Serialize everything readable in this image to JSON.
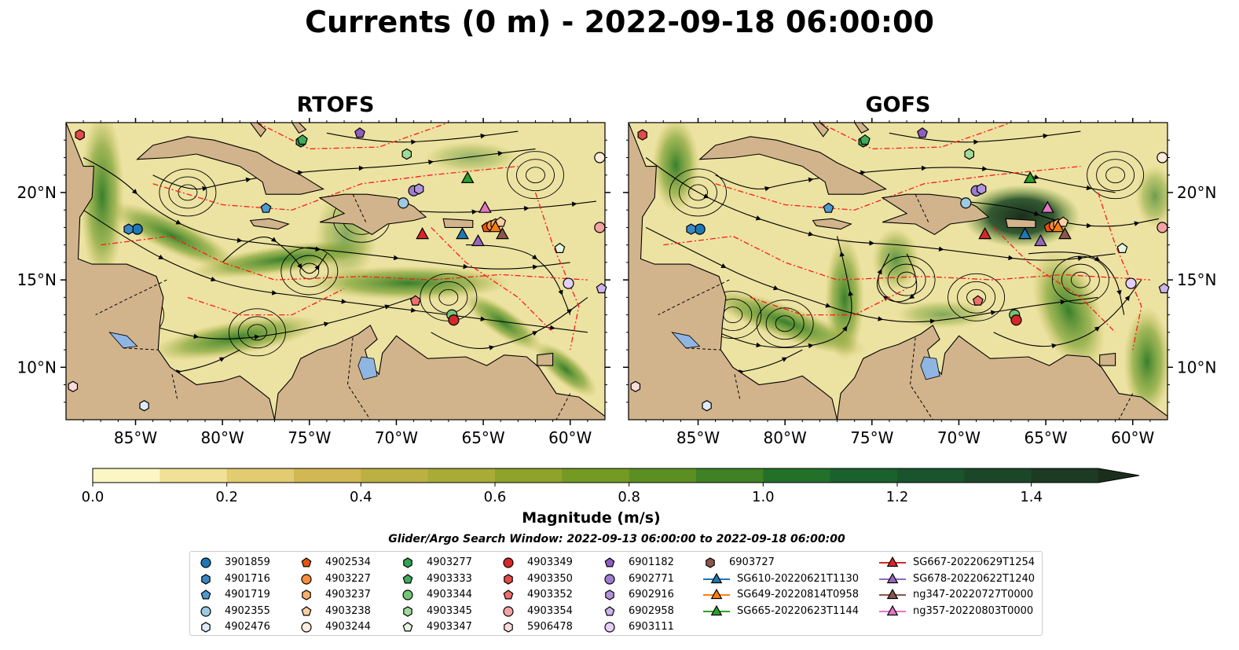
{
  "title": "Currents (0 m) - 2022-09-18 06:00:00",
  "panels": [
    {
      "title": "RTOFS"
    },
    {
      "title": "GOFS"
    }
  ],
  "axes": {
    "lon_ticks": [
      "85°W",
      "80°W",
      "75°W",
      "70°W",
      "65°W",
      "60°W"
    ],
    "lat_ticks": [
      "20°N",
      "15°N",
      "10°N"
    ],
    "lon_range": [
      -89,
      -58
    ],
    "lat_range": [
      7,
      24
    ]
  },
  "colorbar": {
    "label": "Magnitude (m/s)",
    "ticks": [
      "0.0",
      "0.2",
      "0.4",
      "0.6",
      "0.8",
      "1.0",
      "1.2",
      "1.4"
    ],
    "range": [
      0.0,
      1.5
    ],
    "extend": "max",
    "colors": [
      "#fbf6c4",
      "#f0e196",
      "#e2cb71",
      "#d2b852",
      "#bdb043",
      "#a8ab36",
      "#8fa22a",
      "#759a24",
      "#5b8f22",
      "#3f8124",
      "#237029",
      "#19612d",
      "#19542d",
      "#1c4628",
      "#1d3a22",
      "#1a2e1b"
    ]
  },
  "search_window": "Glider/Argo Search Window: 2022-09-13 06:00:00 to 2022-09-18 06:00:00",
  "legend": [
    {
      "label": "3901859",
      "marker": "circle",
      "color": "#1f77b4"
    },
    {
      "label": "4901716",
      "marker": "hexagon",
      "color": "#3a88c3"
    },
    {
      "label": "4901719",
      "marker": "pentagon",
      "color": "#4e9ad1"
    },
    {
      "label": "4902355",
      "marker": "circle",
      "color": "#9ecae1"
    },
    {
      "label": "4902476",
      "marker": "hexagon",
      "color": "#deebf7"
    },
    {
      "label": "4902534",
      "marker": "pentagon",
      "color": "#e6550d"
    },
    {
      "label": "4903227",
      "marker": "circle",
      "color": "#fd8d3c"
    },
    {
      "label": "4903237",
      "marker": "hexagon",
      "color": "#fdae6b"
    },
    {
      "label": "4903238",
      "marker": "pentagon",
      "color": "#fdd0a2"
    },
    {
      "label": "4903244",
      "marker": "circle",
      "color": "#feedde"
    },
    {
      "label": "4903277",
      "marker": "hexagon",
      "color": "#31a354"
    },
    {
      "label": "4903333",
      "marker": "pentagon",
      "color": "#41ab5d"
    },
    {
      "label": "4903344",
      "marker": "circle",
      "color": "#74c476"
    },
    {
      "label": "4903345",
      "marker": "hexagon",
      "color": "#a1d99b"
    },
    {
      "label": "4903347",
      "marker": "pentagon",
      "color": "#e5f5e0"
    },
    {
      "label": "4903349",
      "marker": "circle",
      "color": "#d62728"
    },
    {
      "label": "4903350",
      "marker": "hexagon",
      "color": "#e34a4a"
    },
    {
      "label": "4903352",
      "marker": "pentagon",
      "color": "#ef6f6c"
    },
    {
      "label": "4903354",
      "marker": "circle",
      "color": "#f4a3a3"
    },
    {
      "label": "5906478",
      "marker": "hexagon",
      "color": "#fcdada"
    },
    {
      "label": "6901182",
      "marker": "pentagon",
      "color": "#8e5fc0"
    },
    {
      "label": "6902771",
      "marker": "circle",
      "color": "#9e7ccf"
    },
    {
      "label": "6902916",
      "marker": "hexagon",
      "color": "#b293dd"
    },
    {
      "label": "6902958",
      "marker": "pentagon",
      "color": "#cdb4ec"
    },
    {
      "label": "6903111",
      "marker": "circle",
      "color": "#e4cff7"
    },
    {
      "label": "6903727",
      "marker": "hexagon",
      "color": "#8c564b"
    },
    {
      "label": "SG610-20220621T1130",
      "marker": "triangle",
      "color": "#1f77b4",
      "line": true
    },
    {
      "label": "SG649-20220814T0958",
      "marker": "triangle",
      "color": "#ff7f0e",
      "line": true
    },
    {
      "label": "SG665-20220623T1144",
      "marker": "triangle",
      "color": "#2ca02c",
      "line": true
    },
    {
      "label": "SG667-20220629T1254",
      "marker": "triangle",
      "color": "#d62728",
      "line": true
    },
    {
      "label": "SG678-20220622T1240",
      "marker": "triangle",
      "color": "#9467bd",
      "line": true
    },
    {
      "label": "ng347-20220727T0000",
      "marker": "triangle",
      "color": "#8c564b",
      "line": true
    },
    {
      "label": "ng357-20220803T0000",
      "marker": "triangle",
      "color": "#e377c2",
      "line": true
    }
  ],
  "observations": [
    {
      "id": "3901859",
      "lon": -84.9,
      "lat": 17.9
    },
    {
      "id": "4901716",
      "lon": -85.4,
      "lat": 17.9
    },
    {
      "id": "4901719",
      "lon": -77.5,
      "lat": 19.1
    },
    {
      "id": "4902355",
      "lon": -69.6,
      "lat": 19.4
    },
    {
      "id": "4902476",
      "lon": -84.5,
      "lat": 7.8
    },
    {
      "id": "4902534",
      "lon": -64.8,
      "lat": 18.0
    },
    {
      "id": "4903227",
      "lon": -64.5,
      "lat": 18.1
    },
    {
      "id": "4903237",
      "lon": -64.3,
      "lat": 18.2
    },
    {
      "id": "4903238",
      "lon": -64.0,
      "lat": 18.3
    },
    {
      "id": "4903244",
      "lon": -58.3,
      "lat": 22.0
    },
    {
      "id": "4903277",
      "lon": -75.5,
      "lat": 22.9
    },
    {
      "id": "4903333",
      "lon": -75.4,
      "lat": 23.0
    },
    {
      "id": "4903344",
      "lon": -66.8,
      "lat": 13.0
    },
    {
      "id": "4903345",
      "lon": -69.4,
      "lat": 22.2
    },
    {
      "id": "4903347",
      "lon": -60.6,
      "lat": 16.8
    },
    {
      "id": "4903349",
      "lon": -66.7,
      "lat": 12.7
    },
    {
      "id": "4903350",
      "lon": -88.2,
      "lat": 23.3
    },
    {
      "id": "4903352",
      "lon": -68.9,
      "lat": 13.8
    },
    {
      "id": "4903354",
      "lon": -58.3,
      "lat": 18.0
    },
    {
      "id": "5906478",
      "lon": -88.6,
      "lat": 8.9
    },
    {
      "id": "6901182",
      "lon": -72.1,
      "lat": 23.4
    },
    {
      "id": "6902771",
      "lon": -69.0,
      "lat": 20.1
    },
    {
      "id": "6902916",
      "lon": -68.7,
      "lat": 20.2
    },
    {
      "id": "6902958",
      "lon": -58.2,
      "lat": 14.5
    },
    {
      "id": "6903111",
      "lon": -60.1,
      "lat": 14.8
    }
  ],
  "gliders": [
    {
      "id": "SG610-20220621T1130",
      "lon": -66.2,
      "lat": 17.6
    },
    {
      "id": "SG649-20220814T0958",
      "lon": -64.3,
      "lat": 18.0
    },
    {
      "id": "SG665-20220623T1144",
      "lon": -65.9,
      "lat": 20.8
    },
    {
      "id": "SG667-20220629T1254",
      "lon": -68.5,
      "lat": 17.6
    },
    {
      "id": "SG678-20220622T1240",
      "lon": -65.3,
      "lat": 17.2
    },
    {
      "id": "ng347-20220727T0000",
      "lon": -63.9,
      "lat": 17.6
    },
    {
      "id": "ng357-20220803T0000",
      "lon": -64.9,
      "lat": 19.1
    }
  ]
}
